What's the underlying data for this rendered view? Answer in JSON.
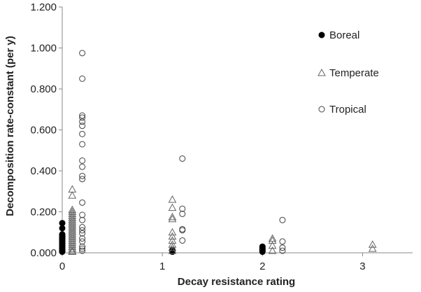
{
  "chart_data": {
    "type": "scatter",
    "xlabel": "Decay resistance rating",
    "ylabel": "Decomposition rate-constant (per y)",
    "xlim": [
      0,
      3.5
    ],
    "ylim": [
      0,
      1.2
    ],
    "x_ticks": [
      "0",
      "1",
      "2",
      "3"
    ],
    "y_ticks": [
      "0.000",
      "0.200",
      "0.400",
      "0.600",
      "0.800",
      "1.000",
      "1.200"
    ],
    "grid": false,
    "legend_position": "top-right",
    "series": [
      {
        "name": "Boreal",
        "marker": "filled-circle",
        "color": "#000000",
        "points": [
          [
            0,
            0.145
          ],
          [
            0,
            0.12
          ],
          [
            0,
            0.09
          ],
          [
            0,
            0.085
          ],
          [
            0,
            0.08
          ],
          [
            0,
            0.075
          ],
          [
            0,
            0.07
          ],
          [
            0,
            0.065
          ],
          [
            0,
            0.06
          ],
          [
            0,
            0.055
          ],
          [
            0,
            0.05
          ],
          [
            0,
            0.045
          ],
          [
            0,
            0.04
          ],
          [
            0,
            0.035
          ],
          [
            0,
            0.03
          ],
          [
            0,
            0.025
          ],
          [
            0,
            0.02
          ],
          [
            0,
            0.015
          ],
          [
            0,
            0.01
          ],
          [
            0,
            0.005
          ],
          [
            1.1,
            0.01
          ],
          [
            1.1,
            0.015
          ],
          [
            1.1,
            0.005
          ],
          [
            2,
            0.03
          ],
          [
            2,
            0.025
          ],
          [
            2,
            0.02
          ],
          [
            2,
            0.015
          ],
          [
            2,
            0.01
          ],
          [
            2,
            0.005
          ]
        ]
      },
      {
        "name": "Temperate",
        "marker": "open-triangle",
        "color": "#666666",
        "points": [
          [
            0.1,
            0.31
          ],
          [
            0.1,
            0.28
          ],
          [
            0.1,
            0.21
          ],
          [
            0.1,
            0.2
          ],
          [
            0.1,
            0.19
          ],
          [
            0.1,
            0.18
          ],
          [
            0.1,
            0.17
          ],
          [
            0.1,
            0.16
          ],
          [
            0.1,
            0.15
          ],
          [
            0.1,
            0.14
          ],
          [
            0.1,
            0.13
          ],
          [
            0.1,
            0.12
          ],
          [
            0.1,
            0.11
          ],
          [
            0.1,
            0.1
          ],
          [
            0.1,
            0.09
          ],
          [
            0.1,
            0.08
          ],
          [
            0.1,
            0.07
          ],
          [
            0.1,
            0.06
          ],
          [
            0.1,
            0.05
          ],
          [
            0.1,
            0.04
          ],
          [
            0.1,
            0.03
          ],
          [
            0.1,
            0.02
          ],
          [
            0.1,
            0.01
          ],
          [
            0.1,
            0.005
          ],
          [
            1.1,
            0.26
          ],
          [
            1.1,
            0.22
          ],
          [
            1.1,
            0.175
          ],
          [
            1.1,
            0.165
          ],
          [
            1.1,
            0.1
          ],
          [
            1.1,
            0.08
          ],
          [
            1.1,
            0.06
          ],
          [
            1.1,
            0.04
          ],
          [
            1.1,
            0.025
          ],
          [
            1.1,
            0.01
          ],
          [
            2.1,
            0.07
          ],
          [
            2.1,
            0.06
          ],
          [
            2.1,
            0.035
          ],
          [
            2.1,
            0.01
          ],
          [
            3.1,
            0.04
          ],
          [
            3.1,
            0.02
          ]
        ]
      },
      {
        "name": "Tropical",
        "marker": "open-circle",
        "color": "#444444",
        "points": [
          [
            0.2,
            0.975
          ],
          [
            0.2,
            0.85
          ],
          [
            0.2,
            0.67
          ],
          [
            0.2,
            0.66
          ],
          [
            0.2,
            0.64
          ],
          [
            0.2,
            0.62
          ],
          [
            0.2,
            0.58
          ],
          [
            0.2,
            0.53
          ],
          [
            0.2,
            0.45
          ],
          [
            0.2,
            0.42
          ],
          [
            0.2,
            0.375
          ],
          [
            0.2,
            0.36
          ],
          [
            0.2,
            0.245
          ],
          [
            0.2,
            0.185
          ],
          [
            0.2,
            0.16
          ],
          [
            0.2,
            0.125
          ],
          [
            0.2,
            0.11
          ],
          [
            0.2,
            0.095
          ],
          [
            0.2,
            0.07
          ],
          [
            0.2,
            0.055
          ],
          [
            0.2,
            0.03
          ],
          [
            0.2,
            0.02
          ],
          [
            0.2,
            0.01
          ],
          [
            1.2,
            0.46
          ],
          [
            1.2,
            0.215
          ],
          [
            1.2,
            0.19
          ],
          [
            1.2,
            0.115
          ],
          [
            1.2,
            0.11
          ],
          [
            1.2,
            0.06
          ],
          [
            2.2,
            0.16
          ],
          [
            2.2,
            0.055
          ],
          [
            2.2,
            0.025
          ],
          [
            2.2,
            0.01
          ]
        ]
      }
    ]
  }
}
